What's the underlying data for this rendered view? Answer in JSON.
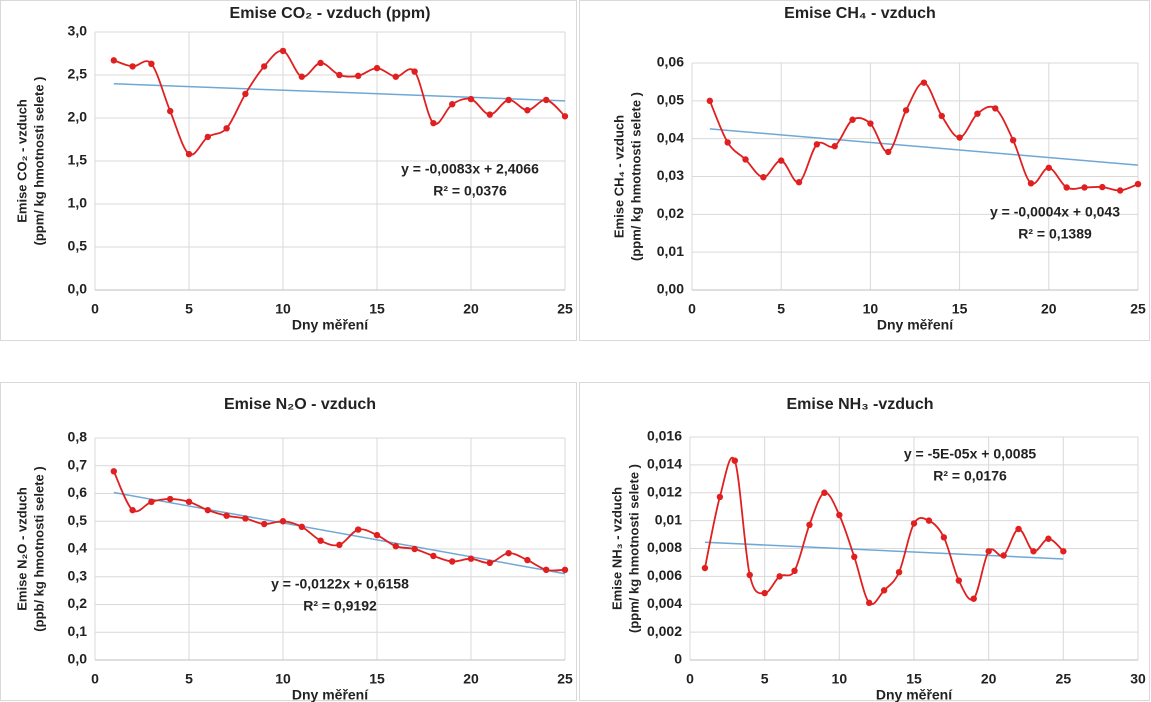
{
  "chart_data": [
    {
      "type": "line",
      "title": "Emise CO₂ - vzduch (ppm)",
      "xlabel": "Dny měření",
      "ylabel": [
        "Emise CO₂ - vzduch",
        "(ppm/ kg  hmotnosti selete )"
      ],
      "x": [
        1,
        2,
        3,
        4,
        5,
        6,
        7,
        8,
        9,
        10,
        11,
        12,
        13,
        14,
        15,
        16,
        17,
        18,
        19,
        20,
        21,
        22,
        23,
        24,
        25
      ],
      "values": [
        2.67,
        2.6,
        2.63,
        2.08,
        1.58,
        1.78,
        1.88,
        2.28,
        2.6,
        2.78,
        2.48,
        2.64,
        2.5,
        2.49,
        2.58,
        2.48,
        2.54,
        1.94,
        2.16,
        2.22,
        2.04,
        2.21,
        2.09,
        2.21,
        2.02
      ],
      "color": "#e02020",
      "trend": {
        "x": [
          1,
          25
        ],
        "values": [
          2.3983,
          2.1991
        ],
        "color": "#6fa8d6"
      },
      "annotations": [
        "y = -0,0083x + 2,4066",
        "R² = 0,0376"
      ],
      "xlim": [
        0,
        25
      ],
      "xticks": [
        0,
        5,
        10,
        15,
        20,
        25
      ],
      "ylim": [
        0,
        3
      ],
      "yticks": [
        {
          "value": 0,
          "label": "0,0"
        },
        {
          "value": 0.5,
          "label": "0,5"
        },
        {
          "value": 1,
          "label": "1,0"
        },
        {
          "value": 1.5,
          "label": "1,5"
        },
        {
          "value": 2,
          "label": "2,0"
        },
        {
          "value": 2.5,
          "label": "2,5"
        },
        {
          "value": 3,
          "label": "3,0"
        }
      ],
      "grid": true
    },
    {
      "type": "line",
      "title": "Emise CH₄ - vzduch",
      "xlabel": "Dny měření",
      "ylabel": [
        "Emise CH₄ - vzduch",
        "(ppm/ kg  hmotnosti selete )"
      ],
      "x": [
        1,
        2,
        3,
        4,
        5,
        6,
        7,
        8,
        9,
        10,
        11,
        12,
        13,
        14,
        15,
        16,
        17,
        18,
        19,
        20,
        21,
        22,
        23,
        24,
        25
      ],
      "values": [
        0.05,
        0.039,
        0.0345,
        0.0298,
        0.0342,
        0.0285,
        0.0385,
        0.038,
        0.045,
        0.044,
        0.0365,
        0.0475,
        0.0548,
        0.046,
        0.0403,
        0.0466,
        0.048,
        0.0396,
        0.0282,
        0.0323,
        0.0271,
        0.0271,
        0.0272,
        0.0263,
        0.028
      ],
      "color": "#e02020",
      "trend": {
        "x": [
          1,
          25
        ],
        "values": [
          0.0426,
          0.033
        ],
        "color": "#6fa8d6"
      },
      "annotations": [
        "y = -0,0004x + 0,043",
        "R² = 0,1389"
      ],
      "xlim": [
        0,
        25
      ],
      "xticks": [
        0,
        5,
        10,
        15,
        20,
        25
      ],
      "ylim": [
        0,
        0.06
      ],
      "yticks": [
        {
          "value": 0,
          "label": "0,00"
        },
        {
          "value": 0.01,
          "label": "0,01"
        },
        {
          "value": 0.02,
          "label": "0,02"
        },
        {
          "value": 0.03,
          "label": "0,03"
        },
        {
          "value": 0.04,
          "label": "0,04"
        },
        {
          "value": 0.05,
          "label": "0,05"
        },
        {
          "value": 0.06,
          "label": "0,06"
        }
      ],
      "grid": true
    },
    {
      "type": "line",
      "title": "Emise N₂O - vzduch",
      "xlabel": "Dny měření",
      "ylabel": [
        "Emise N₂O - vzduch",
        "(ppb/ kg  hmotnosti selete )"
      ],
      "x": [
        1,
        2,
        3,
        4,
        5,
        6,
        7,
        8,
        9,
        10,
        11,
        12,
        13,
        14,
        15,
        16,
        17,
        18,
        19,
        20,
        21,
        22,
        23,
        24,
        25
      ],
      "values": [
        0.68,
        0.54,
        0.57,
        0.58,
        0.57,
        0.54,
        0.52,
        0.51,
        0.49,
        0.5,
        0.48,
        0.43,
        0.415,
        0.47,
        0.45,
        0.41,
        0.4,
        0.375,
        0.355,
        0.365,
        0.35,
        0.385,
        0.36,
        0.325,
        0.325
      ],
      "color": "#e02020",
      "trend": {
        "x": [
          1,
          25
        ],
        "values": [
          0.6036,
          0.3108
        ],
        "color": "#6fa8d6"
      },
      "annotations": [
        "y = -0,0122x + 0,6158",
        "R² = 0,9192"
      ],
      "xlim": [
        0,
        25
      ],
      "xticks": [
        0,
        5,
        10,
        15,
        20,
        25
      ],
      "ylim": [
        0,
        0.8
      ],
      "yticks": [
        {
          "value": 0,
          "label": "0,0"
        },
        {
          "value": 0.1,
          "label": "0,1"
        },
        {
          "value": 0.2,
          "label": "0,2"
        },
        {
          "value": 0.3,
          "label": "0,3"
        },
        {
          "value": 0.4,
          "label": "0,4"
        },
        {
          "value": 0.5,
          "label": "0,5"
        },
        {
          "value": 0.6,
          "label": "0,6"
        },
        {
          "value": 0.7,
          "label": "0,7"
        },
        {
          "value": 0.8,
          "label": "0,8"
        }
      ],
      "grid": true
    },
    {
      "type": "line",
      "title": "Emise NH₃ -vzduch",
      "xlabel": "Dny měření",
      "ylabel": [
        "Emise NH₃ - vzduch",
        "(ppm/ kg  hmotnosti selete )"
      ],
      "x": [
        1,
        2,
        3,
        4,
        5,
        6,
        7,
        8,
        9,
        10,
        11,
        12,
        13,
        14,
        15,
        16,
        17,
        18,
        19,
        20,
        21,
        22,
        23,
        24,
        25
      ],
      "values": [
        0.0066,
        0.0117,
        0.0143,
        0.0061,
        0.0048,
        0.006,
        0.0064,
        0.0097,
        0.012,
        0.0104,
        0.0074,
        0.0041,
        0.005,
        0.0063,
        0.0098,
        0.01,
        0.0088,
        0.0057,
        0.0044,
        0.0078,
        0.0075,
        0.0094,
        0.0078,
        0.0087,
        0.0078
      ],
      "color": "#e02020",
      "trend": {
        "x": [
          1,
          25
        ],
        "values": [
          0.00845,
          0.00725
        ],
        "color": "#6fa8d6"
      },
      "annotations": [
        "y = -5E-05x + 0,0085",
        "R² = 0,0176"
      ],
      "xlim": [
        0,
        30
      ],
      "xticks": [
        0,
        5,
        10,
        15,
        20,
        25,
        30
      ],
      "ylim": [
        0,
        0.016
      ],
      "yticks": [
        0,
        {
          "value": 0.002,
          "label": "0,002"
        },
        {
          "value": 0.004,
          "label": "0,004"
        },
        {
          "value": 0.006,
          "label": "0,006"
        },
        {
          "value": 0.008,
          "label": "0,008"
        },
        {
          "value": 0.01,
          "label": "0,01"
        },
        {
          "value": 0.012,
          "label": "0,012"
        },
        {
          "value": 0.014,
          "label": "0,014"
        },
        {
          "value": 0.016,
          "label": "0,016"
        }
      ],
      "grid": true
    }
  ]
}
